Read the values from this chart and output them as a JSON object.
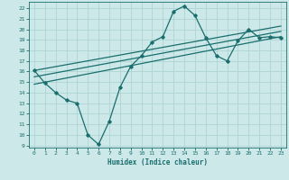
{
  "xlabel": "Humidex (Indice chaleur)",
  "xlim": [
    -0.5,
    23.5
  ],
  "ylim": [
    8.8,
    22.6
  ],
  "yticks": [
    9,
    10,
    11,
    12,
    13,
    14,
    15,
    16,
    17,
    18,
    19,
    20,
    21,
    22
  ],
  "xticks": [
    0,
    1,
    2,
    3,
    4,
    5,
    6,
    7,
    8,
    9,
    10,
    11,
    12,
    13,
    14,
    15,
    16,
    17,
    18,
    19,
    20,
    21,
    22,
    23
  ],
  "bg_color": "#cde8e8",
  "line_color": "#1a6e6e",
  "grid_color": "#afd4d4",
  "main_line_x": [
    0,
    1,
    2,
    3,
    4,
    5,
    6,
    7,
    8,
    9,
    10,
    11,
    12,
    13,
    14,
    15,
    16,
    17,
    18,
    19,
    20,
    21,
    22,
    23
  ],
  "main_line_y": [
    16.1,
    14.9,
    14.0,
    13.3,
    13.0,
    10.0,
    9.1,
    11.3,
    14.5,
    16.5,
    17.5,
    18.8,
    19.3,
    21.7,
    22.2,
    21.3,
    19.2,
    17.5,
    17.0,
    18.9,
    20.0,
    19.2,
    19.3,
    19.2
  ],
  "trend1_x": [
    0,
    23
  ],
  "trend1_y": [
    14.8,
    19.3
  ],
  "trend2_x": [
    0,
    23
  ],
  "trend2_y": [
    15.5,
    19.8
  ],
  "trend3_x": [
    0,
    23
  ],
  "trend3_y": [
    16.1,
    20.3
  ]
}
